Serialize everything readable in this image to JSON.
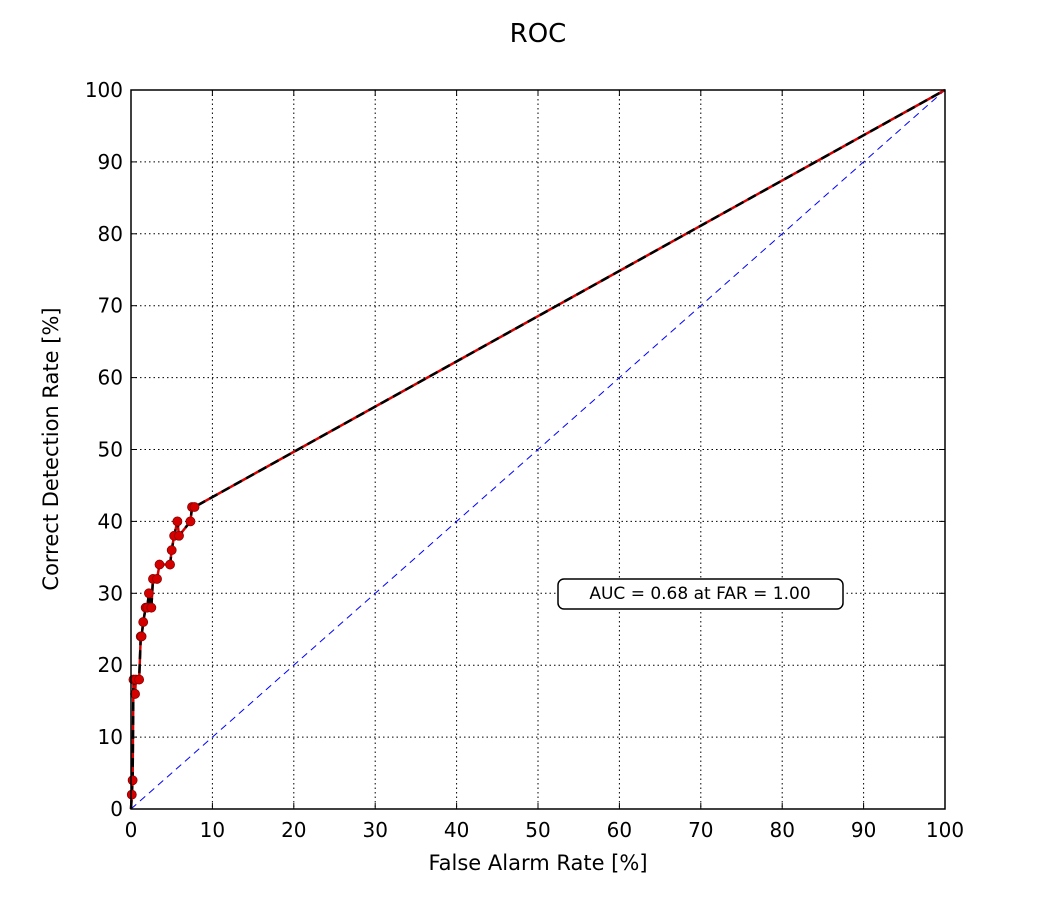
{
  "chart_data": {
    "type": "line",
    "title": "ROC",
    "xlabel": "False Alarm Rate [%]",
    "ylabel": "Correct Detection Rate [%]",
    "xlim": [
      0,
      100
    ],
    "ylim": [
      0,
      100
    ],
    "xticks": [
      0,
      10,
      20,
      30,
      40,
      50,
      60,
      70,
      80,
      90,
      100
    ],
    "yticks": [
      0,
      10,
      20,
      30,
      40,
      50,
      60,
      70,
      80,
      90,
      100
    ],
    "grid": true,
    "annotation": "AUC = 0.68 at FAR = 1.00",
    "colors": {
      "points": "#d40000",
      "curve": "#000000",
      "chance": "#0000ff"
    },
    "series": [
      {
        "style": "red-markers-black-dashed",
        "x": [
          0,
          0.1,
          0.2,
          0.3,
          0.5,
          0.6,
          1.0,
          1.2,
          1.3,
          1.5,
          1.8,
          2.0,
          2.2,
          2.5,
          2.7,
          3.2,
          3.5,
          4.8,
          5.0,
          5.3,
          5.7,
          5.9,
          7.3,
          7.5,
          7.8,
          100
        ],
        "y": [
          0,
          2,
          4,
          18,
          16,
          18,
          18,
          24,
          24,
          26,
          28,
          28,
          30,
          28,
          32,
          32,
          34,
          34,
          36,
          38,
          40,
          38,
          40,
          42,
          42,
          100
        ]
      },
      {
        "style": "blue-dashed-diagonal",
        "x": [
          0,
          100
        ],
        "y": [
          0,
          100
        ]
      }
    ]
  }
}
